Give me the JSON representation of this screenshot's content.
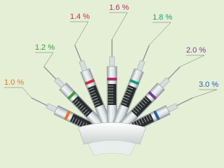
{
  "labels": [
    {
      "text": "1.0 %",
      "color": "#e8762b"
    },
    {
      "text": "1.2 %",
      "color": "#3f9a3a"
    },
    {
      "text": "1.4 %",
      "color": "#c8323a"
    },
    {
      "text": "1.6 %",
      "color": "#b0306a"
    },
    {
      "text": "1.8 %",
      "color": "#1c9a7e"
    },
    {
      "text": "2.0 %",
      "color": "#7a3a9a"
    },
    {
      "text": "3.0 %",
      "color": "#2a5fa8"
    }
  ]
}
